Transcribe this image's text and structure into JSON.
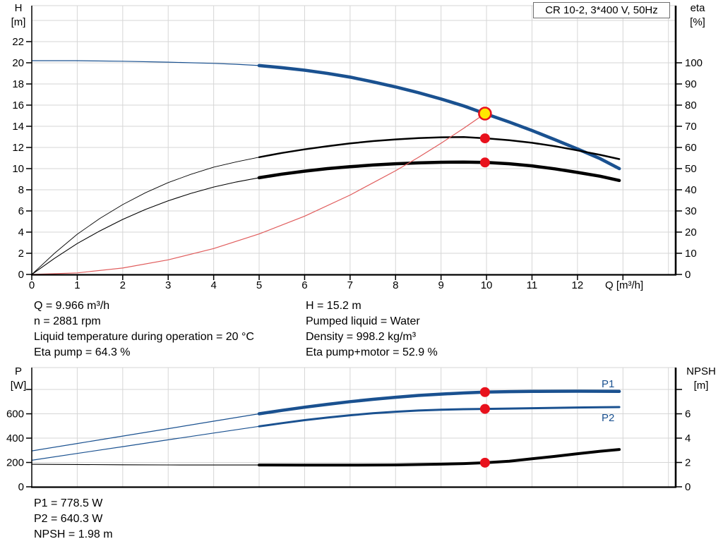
{
  "title_box": {
    "label": "CR 10-2, 3*400 V, 50Hz"
  },
  "colors": {
    "curve_blue": "#1a5190",
    "curve_black": "#000000",
    "system_red": "#e05c5c",
    "dot_red": "#e8111c",
    "duty_yellow": "#ffe800",
    "grid": "#d6d6d6",
    "axis": "#000000"
  },
  "chart_data": [
    {
      "type": "line",
      "title": "CR 10-2, 3*400 V, 50Hz",
      "xlabel": "Q [m³/h]",
      "ylabel_left": "H [m]",
      "ylabel_right": "eta [%]",
      "axis_labels": {
        "left": [
          "H",
          "[m]"
        ],
        "right": [
          "eta",
          "[%]"
        ],
        "x": "Q [m³/h]"
      },
      "xlim": [
        0,
        14.16
      ],
      "ylim_left": [
        0,
        25.4
      ],
      "ylim_right": [
        0,
        127
      ],
      "grid_left_values": [
        2,
        4,
        6,
        8,
        10,
        12,
        14,
        16,
        18,
        20,
        22,
        24
      ],
      "x_ticks": {
        "values": [
          0,
          1,
          2,
          3,
          4,
          5,
          6,
          7,
          8,
          9,
          10,
          11,
          12,
          13
        ],
        "labels": [
          "0",
          "1",
          "2",
          "3",
          "4",
          "5",
          "6",
          "7",
          "8",
          "9",
          "10",
          "11",
          "12",
          ""
        ]
      },
      "y_left_ticks": {
        "values": [
          0,
          2,
          4,
          6,
          8,
          10,
          12,
          14,
          16,
          18,
          20,
          22
        ],
        "labels": [
          "0",
          "2",
          "4",
          "6",
          "8",
          "10",
          "12",
          "14",
          "16",
          "18",
          "20",
          "22"
        ]
      },
      "y_right_ticks": {
        "values": [
          0,
          10,
          20,
          30,
          40,
          50,
          60,
          70,
          80,
          90,
          100
        ],
        "labels": [
          "0",
          "10",
          "20",
          "30",
          "40",
          "50",
          "60",
          "70",
          "80",
          "90",
          "100"
        ]
      },
      "series": [
        {
          "name": "head-curve",
          "axis": "left",
          "color": "curve_blue",
          "width_thin": 1.2,
          "width_thick": 4.6,
          "thick_from": 5,
          "points": [
            [
              0,
              20.2
            ],
            [
              1,
              20.2
            ],
            [
              2,
              20.15
            ],
            [
              3,
              20.06
            ],
            [
              4,
              19.95
            ],
            [
              4.5,
              19.86
            ],
            [
              5,
              19.74
            ],
            [
              5.5,
              19.54
            ],
            [
              6,
              19.3
            ],
            [
              6.5,
              19.0
            ],
            [
              7,
              18.65
            ],
            [
              7.5,
              18.2
            ],
            [
              8,
              17.72
            ],
            [
              8.5,
              17.18
            ],
            [
              9,
              16.58
            ],
            [
              9.5,
              15.92
            ],
            [
              9.966,
              15.2
            ],
            [
              10.5,
              14.4
            ],
            [
              11,
              13.6
            ],
            [
              11.5,
              12.74
            ],
            [
              12,
              11.86
            ],
            [
              12.5,
              10.94
            ],
            [
              12.92,
              10.0
            ]
          ]
        },
        {
          "name": "eta-pump-curve",
          "axis": "right",
          "color": "curve_black",
          "width_thin": 0.9,
          "width_thick": 2.5,
          "thick_from": 5,
          "points": [
            [
              0,
              0
            ],
            [
              0.5,
              10
            ],
            [
              1,
              19
            ],
            [
              1.5,
              26.5
            ],
            [
              2,
              33
            ],
            [
              2.5,
              38.6
            ],
            [
              3,
              43.4
            ],
            [
              3.5,
              47.3
            ],
            [
              4,
              50.7
            ],
            [
              4.5,
              53.2
            ],
            [
              5,
              55.4
            ],
            [
              5.5,
              57.4
            ],
            [
              6,
              59.1
            ],
            [
              6.5,
              60.6
            ],
            [
              7,
              61.9
            ],
            [
              7.5,
              63.0
            ],
            [
              8,
              63.8
            ],
            [
              8.5,
              64.4
            ],
            [
              9,
              64.8
            ],
            [
              9.5,
              64.9
            ],
            [
              10,
              64.3
            ],
            [
              10.5,
              63.4
            ],
            [
              11,
              62.2
            ],
            [
              11.5,
              60.6
            ],
            [
              12,
              58.6
            ],
            [
              12.5,
              56.5
            ],
            [
              12.92,
              54.5
            ]
          ]
        },
        {
          "name": "eta-pump-motor-curve",
          "axis": "right",
          "color": "curve_black",
          "width_thin": 1.1,
          "width_thick": 4.5,
          "thick_from": 5,
          "points": [
            [
              0,
              0
            ],
            [
              0.5,
              7.6
            ],
            [
              1,
              14.6
            ],
            [
              1.5,
              20.6
            ],
            [
              2,
              26
            ],
            [
              2.5,
              30.7
            ],
            [
              3,
              34.8
            ],
            [
              3.5,
              38.3
            ],
            [
              4,
              41.3
            ],
            [
              4.5,
              43.7
            ],
            [
              5,
              45.7
            ],
            [
              5.5,
              47.4
            ],
            [
              6,
              48.8
            ],
            [
              6.5,
              50.0
            ],
            [
              7,
              50.9
            ],
            [
              7.5,
              51.7
            ],
            [
              8,
              52.3
            ],
            [
              8.5,
              52.7
            ],
            [
              9,
              53.0
            ],
            [
              9.5,
              53.1
            ],
            [
              10,
              52.9
            ],
            [
              10.5,
              52.3
            ],
            [
              11,
              51.3
            ],
            [
              11.5,
              49.9
            ],
            [
              12,
              48.2
            ],
            [
              12.5,
              46.4
            ],
            [
              12.92,
              44.4
            ]
          ]
        },
        {
          "name": "system-curve",
          "axis": "left",
          "color": "system_red",
          "width_thin": 1.2,
          "points": [
            [
              0,
              0
            ],
            [
              1,
              0.15
            ],
            [
              2,
              0.61
            ],
            [
              3,
              1.38
            ],
            [
              4,
              2.45
            ],
            [
              5,
              3.83
            ],
            [
              6,
              5.51
            ],
            [
              7,
              7.5
            ],
            [
              8,
              9.8
            ],
            [
              8.5,
              11.06
            ],
            [
              9,
              12.4
            ],
            [
              9.5,
              13.81
            ],
            [
              9.966,
              15.2
            ]
          ]
        }
      ],
      "markers": [
        {
          "shape": "dot",
          "axis": "right",
          "x": 9.966,
          "y": 64.3,
          "name": "eta-pump-duty-dot"
        },
        {
          "shape": "dot",
          "axis": "right",
          "x": 9.966,
          "y": 52.9,
          "name": "eta-pump-motor-duty-dot"
        },
        {
          "shape": "duty",
          "axis": "left",
          "x": 9.966,
          "y": 15.2,
          "name": "duty-point"
        }
      ]
    },
    {
      "type": "line",
      "title": "",
      "xlabel": "",
      "ylabel_left": "P [W]",
      "ylabel_right": "NPSH [m]",
      "axis_labels": {
        "left": [
          "P",
          "[W]"
        ],
        "right": [
          "NPSH",
          "[m]"
        ],
        "x": ""
      },
      "xlim": [
        0,
        14.16
      ],
      "ylim_left": [
        0,
        980
      ],
      "ylim_right": [
        0,
        9.8
      ],
      "grid_left_values": [
        200,
        400,
        600,
        800
      ],
      "x_ticks": {
        "values": [],
        "labels": []
      },
      "y_left_ticks": {
        "values": [
          0,
          200,
          400,
          600,
          800
        ],
        "labels": [
          "0",
          "200",
          "400",
          "600",
          ""
        ]
      },
      "y_right_ticks": {
        "values": [
          0,
          2,
          4,
          6,
          8
        ],
        "labels": [
          "0",
          "2",
          "4",
          "6",
          ""
        ]
      },
      "curve_labels": {
        "p1": "P1",
        "p2": "P2"
      },
      "series": [
        {
          "name": "p1-curve",
          "axis": "left",
          "color": "curve_blue",
          "width_thin": 1.2,
          "width_thick": 4.5,
          "thick_from": 5,
          "points": [
            [
              0,
              295
            ],
            [
              1,
              356
            ],
            [
              2,
              417
            ],
            [
              3,
              478
            ],
            [
              4,
              539
            ],
            [
              5,
              600
            ],
            [
              5.5,
              628
            ],
            [
              6,
              654
            ],
            [
              6.5,
              678
            ],
            [
              7,
              700
            ],
            [
              7.5,
              719
            ],
            [
              8,
              736
            ],
            [
              8.5,
              751
            ],
            [
              9,
              762
            ],
            [
              9.5,
              771
            ],
            [
              9.966,
              778.5
            ],
            [
              10.5,
              782
            ],
            [
              11,
              784
            ],
            [
              11.5,
              785
            ],
            [
              12,
              786
            ],
            [
              12.5,
              785
            ],
            [
              12.92,
              784
            ]
          ]
        },
        {
          "name": "p2-curve",
          "axis": "left",
          "color": "curve_blue",
          "width_thin": 1.2,
          "width_thick": 3.0,
          "thick_from": 5,
          "points": [
            [
              0,
              218
            ],
            [
              1,
              274
            ],
            [
              2,
              330
            ],
            [
              3,
              386
            ],
            [
              4,
              442
            ],
            [
              5,
              497
            ],
            [
              5.5,
              523
            ],
            [
              6,
              548
            ],
            [
              6.5,
              569
            ],
            [
              7,
              588
            ],
            [
              7.5,
              604
            ],
            [
              8,
              617
            ],
            [
              8.5,
              627
            ],
            [
              9,
              634
            ],
            [
              9.5,
              638
            ],
            [
              9.966,
              640.3
            ],
            [
              10.5,
              643
            ],
            [
              11,
              646
            ],
            [
              11.5,
              649
            ],
            [
              12,
              652
            ],
            [
              12.5,
              654
            ],
            [
              12.92,
              655
            ]
          ]
        },
        {
          "name": "npsh-curve",
          "axis": "right",
          "color": "curve_black",
          "width_thin": 1.1,
          "width_thick": 4.0,
          "thick_from": 5,
          "points": [
            [
              0,
              1.85
            ],
            [
              1,
              1.83
            ],
            [
              2,
              1.81
            ],
            [
              3,
              1.8
            ],
            [
              4,
              1.79
            ],
            [
              5,
              1.79
            ],
            [
              6,
              1.78
            ],
            [
              7,
              1.78
            ],
            [
              8,
              1.8
            ],
            [
              9,
              1.86
            ],
            [
              9.5,
              1.91
            ],
            [
              9.966,
              1.98
            ],
            [
              10.5,
              2.1
            ],
            [
              11,
              2.3
            ],
            [
              11.5,
              2.5
            ],
            [
              12,
              2.72
            ],
            [
              12.5,
              2.92
            ],
            [
              12.92,
              3.07
            ]
          ]
        }
      ],
      "markers": [
        {
          "shape": "dot",
          "axis": "left",
          "x": 9.966,
          "y": 778.5,
          "name": "p1-duty-dot"
        },
        {
          "shape": "dot",
          "axis": "left",
          "x": 9.966,
          "y": 640.3,
          "name": "p2-duty-dot"
        },
        {
          "shape": "dot",
          "axis": "right",
          "x": 9.966,
          "y": 1.98,
          "name": "npsh-duty-dot"
        }
      ]
    }
  ],
  "info_top": {
    "left": [
      "Q = 9.966 m³/h",
      "n = 2881 rpm",
      "Liquid temperature during operation = 20 °C",
      "Eta pump = 64.3 %"
    ],
    "right": [
      "H = 15.2 m",
      "Pumped liquid = Water",
      "Density = 998.2 kg/m³",
      "Eta pump+motor = 52.9 %"
    ]
  },
  "info_bottom": [
    "P1 = 778.5 W",
    "P2 = 640.3 W",
    "NPSH = 1.98 m"
  ]
}
